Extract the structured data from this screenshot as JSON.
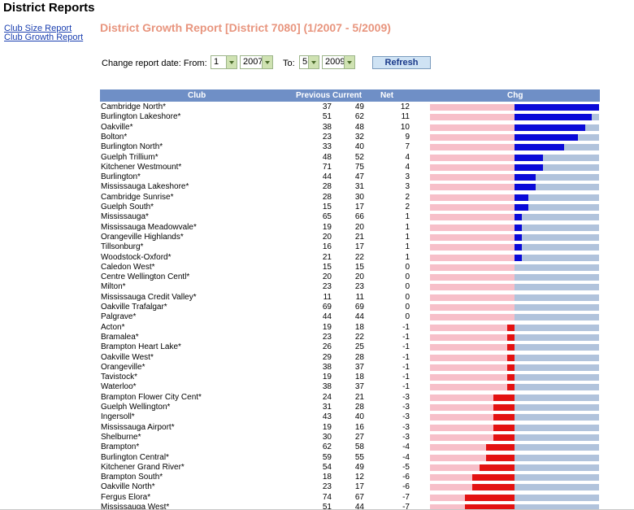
{
  "page": {
    "title": "District Reports"
  },
  "sidebar": {
    "links": [
      "Club Size Report",
      "Club Growth Report"
    ]
  },
  "report": {
    "title": "District Growth Report [District 7080] (1/2007 - 5/2009)",
    "date_label_from": "Change report date: From:",
    "from_month": "1",
    "from_year": "2007",
    "date_label_to": "To:",
    "to_month": "5",
    "to_year": "2009",
    "refresh_label": "Refresh"
  },
  "table": {
    "headers": {
      "club": "Club",
      "previous": "Previous",
      "current": "Current",
      "net": "Net",
      "chg": "Chg"
    },
    "max_abs_net": 12,
    "rows": [
      {
        "club": "Cambridge North*",
        "previous": "37",
        "current": "49",
        "net": "12"
      },
      {
        "club": "Burlington Lakeshore*",
        "previous": "51",
        "current": "62",
        "net": "11"
      },
      {
        "club": "Oakville*",
        "previous": "38",
        "current": "48",
        "net": "10"
      },
      {
        "club": "Bolton*",
        "previous": "23",
        "current": "32",
        "net": "9"
      },
      {
        "club": "Burlington North*",
        "previous": "33",
        "current": "40",
        "net": "7"
      },
      {
        "club": "Guelph Trillium*",
        "previous": "48",
        "current": "52",
        "net": "4"
      },
      {
        "club": "Kitchener Westmount*",
        "previous": "71",
        "current": "75",
        "net": "4"
      },
      {
        "club": "Burlington*",
        "previous": "44",
        "current": "47",
        "net": "3"
      },
      {
        "club": "Mississauga Lakeshore*",
        "previous": "28",
        "current": "31",
        "net": "3"
      },
      {
        "club": "Cambridge Sunrise*",
        "previous": "28",
        "current": "30",
        "net": "2"
      },
      {
        "club": "Guelph South*",
        "previous": "15",
        "current": "17",
        "net": "2"
      },
      {
        "club": "Mississauga*",
        "previous": "65",
        "current": "66",
        "net": "1"
      },
      {
        "club": "Mississauga Meadowvale*",
        "previous": "19",
        "current": "20",
        "net": "1"
      },
      {
        "club": "Orangeville Highlands*",
        "previous": "20",
        "current": "21",
        "net": "1"
      },
      {
        "club": "Tillsonburg*",
        "previous": "16",
        "current": "17",
        "net": "1"
      },
      {
        "club": "Woodstock-Oxford*",
        "previous": "21",
        "current": "22",
        "net": "1"
      },
      {
        "club": "Caledon West*",
        "previous": "15",
        "current": "15",
        "net": "0"
      },
      {
        "club": "Centre Wellington Centl*",
        "previous": "20",
        "current": "20",
        "net": "0"
      },
      {
        "club": "Milton*",
        "previous": "23",
        "current": "23",
        "net": "0"
      },
      {
        "club": "Mississauga Credit Valley*",
        "previous": "11",
        "current": "11",
        "net": "0"
      },
      {
        "club": "Oakville Trafalgar*",
        "previous": "69",
        "current": "69",
        "net": "0"
      },
      {
        "club": "Palgrave*",
        "previous": "44",
        "current": "44",
        "net": "0"
      },
      {
        "club": "Acton*",
        "previous": "19",
        "current": "18",
        "net": "-1"
      },
      {
        "club": "Bramalea*",
        "previous": "23",
        "current": "22",
        "net": "-1"
      },
      {
        "club": "Brampton Heart Lake*",
        "previous": "26",
        "current": "25",
        "net": "-1"
      },
      {
        "club": "Oakville West*",
        "previous": "29",
        "current": "28",
        "net": "-1"
      },
      {
        "club": "Orangeville*",
        "previous": "38",
        "current": "37",
        "net": "-1"
      },
      {
        "club": "Tavistock*",
        "previous": "19",
        "current": "18",
        "net": "-1"
      },
      {
        "club": "Waterloo*",
        "previous": "38",
        "current": "37",
        "net": "-1"
      },
      {
        "club": "Brampton Flower City Cent*",
        "previous": "24",
        "current": "21",
        "net": "-3"
      },
      {
        "club": "Guelph Wellington*",
        "previous": "31",
        "current": "28",
        "net": "-3"
      },
      {
        "club": "Ingersoll*",
        "previous": "43",
        "current": "40",
        "net": "-3"
      },
      {
        "club": "Mississauga Airport*",
        "previous": "19",
        "current": "16",
        "net": "-3"
      },
      {
        "club": "Shelburne*",
        "previous": "30",
        "current": "27",
        "net": "-3"
      },
      {
        "club": "Brampton*",
        "previous": "62",
        "current": "58",
        "net": "-4"
      },
      {
        "club": "Burlington Central*",
        "previous": "59",
        "current": "55",
        "net": "-4"
      },
      {
        "club": "Kitchener Grand River*",
        "previous": "54",
        "current": "49",
        "net": "-5"
      },
      {
        "club": "Brampton South*",
        "previous": "18",
        "current": "12",
        "net": "-6"
      },
      {
        "club": "Oakville North*",
        "previous": "23",
        "current": "17",
        "net": "-6"
      },
      {
        "club": "Fergus Elora*",
        "previous": "74",
        "current": "67",
        "net": "-7"
      },
      {
        "club": "Mississauga West*",
        "previous": "51",
        "current": "44",
        "net": "-7"
      }
    ]
  },
  "colors": {
    "positive_bar": "#0a0ad8",
    "negative_bar": "#e31212",
    "negative_track": "#f7bfc9",
    "positive_track": "#b1c3dc",
    "header_bg": "#6f8fc6",
    "title": "#e8957e"
  }
}
